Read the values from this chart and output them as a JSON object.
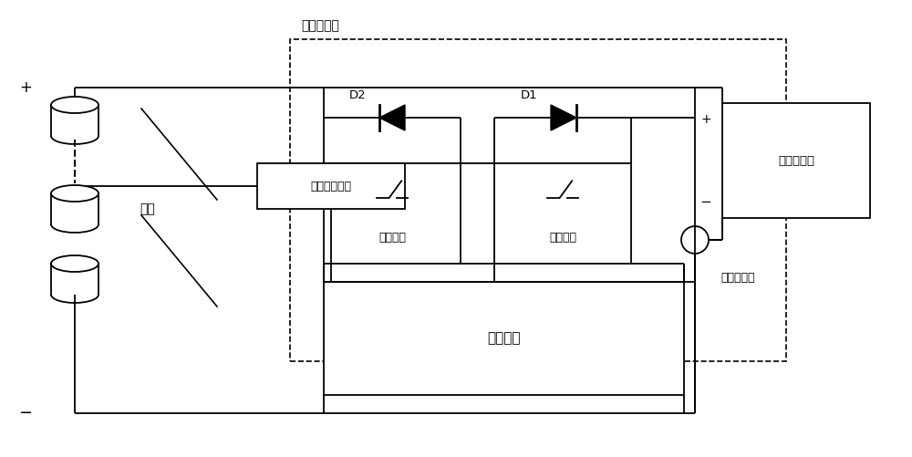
{
  "bg_color": "#ffffff",
  "line_color": "#000000",
  "fig_width": 10.0,
  "fig_height": 5.01,
  "labels": {
    "charge_discharge_unit": "充放电单元",
    "D2": "D2",
    "D1": "D1",
    "discharge_switch": "放电开关",
    "charge_switch": "充电开关",
    "charge_discharge_port": "充放电接口",
    "accelerometer": "加速度传感器",
    "cell": "电芯",
    "control_unit": "控制单元",
    "current_sensor": "电流传感器",
    "plus_top": "+",
    "minus_bottom": "−"
  }
}
